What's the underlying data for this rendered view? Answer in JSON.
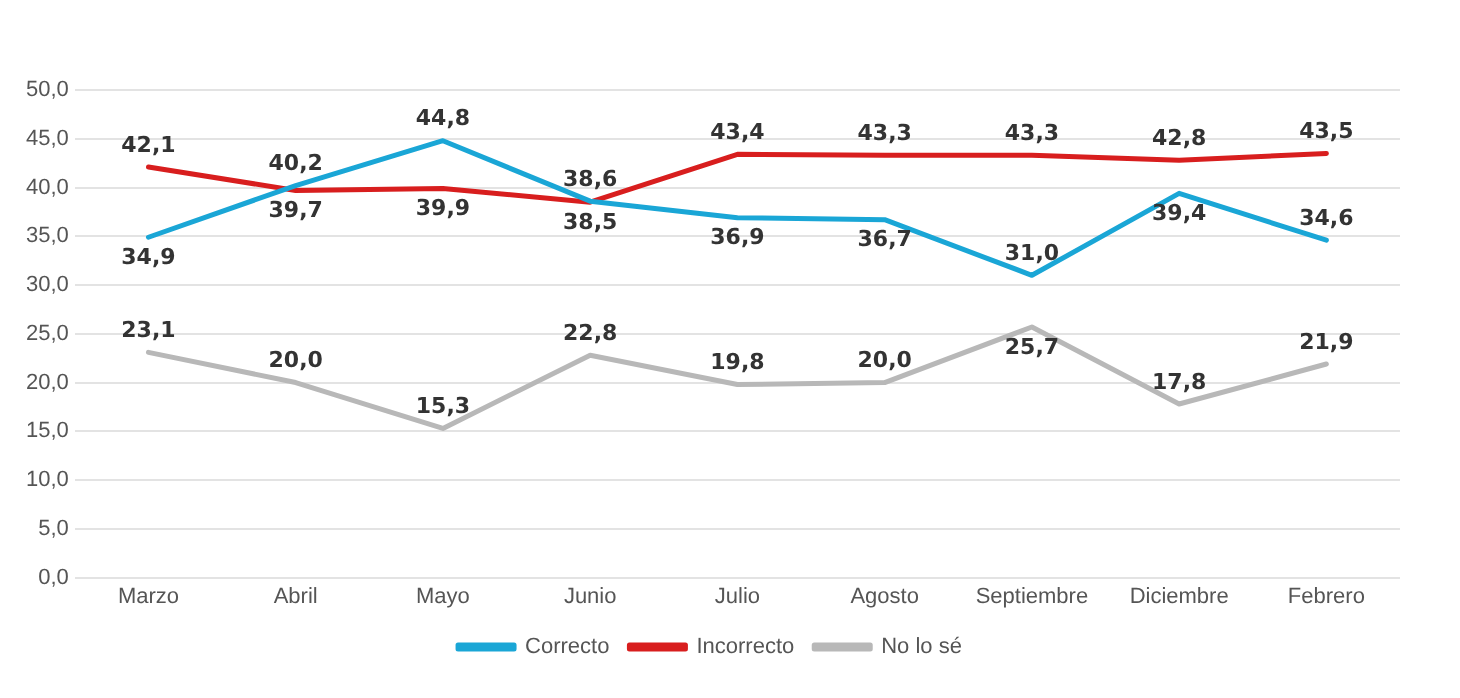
{
  "chart_data": {
    "type": "line",
    "categories": [
      "Marzo",
      "Abril",
      "Mayo",
      "Junio",
      "Julio",
      "Agosto",
      "Septiembre",
      "Diciembre",
      "Febrero"
    ],
    "series": [
      {
        "name": "Correcto",
        "color": "#1aa6d6",
        "values": [
          34.9,
          40.2,
          44.8,
          38.6,
          36.9,
          36.7,
          31.0,
          39.4,
          34.6
        ],
        "value_labels": [
          "34,9",
          "40,2",
          "44,8",
          "38,6",
          "36,9",
          "36,7",
          "31,0",
          "39,4",
          "34,6"
        ]
      },
      {
        "name": "Incorrecto",
        "color": "#d81e1e",
        "values": [
          42.1,
          39.7,
          39.9,
          38.5,
          43.4,
          43.3,
          43.3,
          42.8,
          43.5
        ],
        "value_labels": [
          "42,1",
          "39,7",
          "39,9",
          "38,5",
          "43,4",
          "43,3",
          "43,3",
          "42,8",
          "43,5"
        ]
      },
      {
        "name": "No lo sé",
        "color": "#b8b8b8",
        "values": [
          23.1,
          20.0,
          15.3,
          22.8,
          19.8,
          20.0,
          25.7,
          17.8,
          21.9
        ],
        "value_labels": [
          "23,1",
          "20,0",
          "15,3",
          "22,8",
          "19,8",
          "20,0",
          "25,7",
          "17,8",
          "21,9"
        ]
      }
    ],
    "ylim": [
      0,
      50
    ],
    "yticks": [
      {
        "value": 0,
        "label": "0,0"
      },
      {
        "value": 5,
        "label": "5,0"
      },
      {
        "value": 10,
        "label": "10,0"
      },
      {
        "value": 15,
        "label": "15,0"
      },
      {
        "value": 20,
        "label": "20,0"
      },
      {
        "value": 25,
        "label": "25,0"
      },
      {
        "value": 30,
        "label": "30,0"
      },
      {
        "value": 35,
        "label": "35,0"
      },
      {
        "value": 40,
        "label": "40,0"
      },
      {
        "value": 45,
        "label": "45,0"
      },
      {
        "value": 50,
        "label": "50,0"
      }
    ],
    "grid": "y",
    "legend": "bottom",
    "marker": "none",
    "line_style": "solid"
  }
}
